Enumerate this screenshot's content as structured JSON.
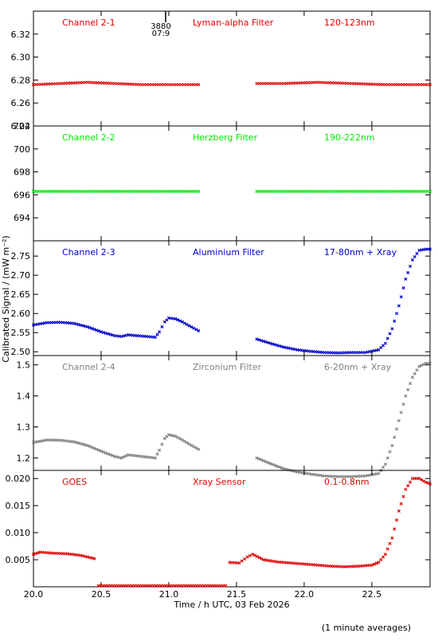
{
  "figure": {
    "ylabel": "Calibrated Signal / (mW m⁻²)",
    "xlabel": "Time / h UTC, 03 Feb 2026",
    "footnote": "(1 minute averages)",
    "marker_top": "3880",
    "marker_bottom": "07:9"
  },
  "colors": {
    "red": "#e00000",
    "green": "#00ee00",
    "blue": "#0000cc",
    "gray": "#808080",
    "axis": "#000000"
  },
  "chart_data": [
    {
      "type": "scatter",
      "labels": [
        "Channel 2-1",
        "Lyman-alpha Filter",
        "120-123nm"
      ],
      "color_key": "red",
      "ylim": [
        6.24,
        6.34
      ],
      "yticks": [
        "6.24",
        "6.26",
        "6.28",
        "6.30",
        "6.32"
      ],
      "ytick_values": [
        6.24,
        6.26,
        6.28,
        6.3,
        6.32
      ],
      "xlim": [
        20.0,
        22.93
      ],
      "series": [
        {
          "x": [
            20.0,
            20.2,
            20.4,
            20.6,
            20.8,
            21.0,
            21.15,
            21.22
          ],
          "y": [
            6.276,
            6.277,
            6.278,
            6.277,
            6.276,
            6.276,
            6.276,
            6.276
          ]
        },
        {
          "x": [
            21.65,
            21.85,
            22.1,
            22.35,
            22.6,
            22.8,
            22.93
          ],
          "y": [
            6.277,
            6.277,
            6.278,
            6.277,
            6.276,
            6.276,
            6.276
          ]
        }
      ]
    },
    {
      "type": "scatter",
      "labels": [
        "Channel 2-2",
        "Herzberg Filter",
        "190-222nm"
      ],
      "color_key": "green",
      "ylim": [
        692,
        702
      ],
      "yticks": [
        "694",
        "696",
        "698",
        "700",
        "702"
      ],
      "ytick_values": [
        694,
        696,
        698,
        700,
        702
      ],
      "xlim": [
        20.0,
        22.93
      ],
      "series": [
        {
          "x": [
            20.0,
            20.4,
            20.8,
            21.22
          ],
          "y": [
            696.3,
            696.3,
            696.3,
            696.3
          ]
        },
        {
          "x": [
            21.65,
            22.1,
            22.6,
            22.93
          ],
          "y": [
            696.3,
            696.3,
            696.3,
            696.3
          ]
        }
      ]
    },
    {
      "type": "scatter",
      "labels": [
        "Channel 2-3",
        "Aluminium Filter",
        "17-80nm + Xray"
      ],
      "color_key": "blue",
      "ylim": [
        2.49,
        2.79
      ],
      "yticks": [
        "2.50",
        "2.55",
        "2.60",
        "2.65",
        "2.70",
        "2.75"
      ],
      "ytick_values": [
        2.5,
        2.55,
        2.6,
        2.65,
        2.7,
        2.75
      ],
      "xlim": [
        20.0,
        22.93
      ],
      "series": [
        {
          "x": [
            20.0,
            20.1,
            20.2,
            20.3,
            20.4,
            20.5,
            20.6,
            20.65,
            20.7,
            20.8,
            20.9,
            20.93,
            20.97,
            21.0,
            21.05,
            21.1,
            21.15,
            21.22
          ],
          "y": [
            2.57,
            2.576,
            2.577,
            2.574,
            2.565,
            2.552,
            2.542,
            2.54,
            2.544,
            2.541,
            2.538,
            2.552,
            2.578,
            2.588,
            2.586,
            2.578,
            2.568,
            2.555
          ]
        },
        {
          "x": [
            21.65,
            21.75,
            21.85,
            21.95,
            22.05,
            22.15,
            22.25,
            22.35,
            22.45,
            22.55,
            22.6,
            22.65,
            22.7,
            22.75,
            22.8,
            22.85,
            22.9,
            22.93
          ],
          "y": [
            2.533,
            2.522,
            2.512,
            2.505,
            2.501,
            2.498,
            2.497,
            2.498,
            2.498,
            2.505,
            2.522,
            2.56,
            2.62,
            2.69,
            2.74,
            2.765,
            2.768,
            2.768
          ]
        }
      ]
    },
    {
      "type": "scatter",
      "labels": [
        "Channel 2-4",
        "Zirconium Filter",
        "6-20nm + Xray"
      ],
      "color_key": "gray",
      "ylim": [
        1.16,
        1.53
      ],
      "yticks": [
        "1.2",
        "1.3",
        "1.4",
        "1.5"
      ],
      "ytick_values": [
        1.2,
        1.3,
        1.4,
        1.5
      ],
      "xlim": [
        20.0,
        22.93
      ],
      "series": [
        {
          "x": [
            20.0,
            20.1,
            20.2,
            20.3,
            20.4,
            20.5,
            20.6,
            20.65,
            20.7,
            20.8,
            20.9,
            20.93,
            20.97,
            21.0,
            21.05,
            21.1,
            21.15,
            21.22
          ],
          "y": [
            1.25,
            1.258,
            1.257,
            1.252,
            1.24,
            1.222,
            1.205,
            1.2,
            1.21,
            1.205,
            1.2,
            1.225,
            1.263,
            1.275,
            1.27,
            1.258,
            1.245,
            1.228
          ]
        },
        {
          "x": [
            21.65,
            21.75,
            21.85,
            21.95,
            22.05,
            22.15,
            22.25,
            22.35,
            22.45,
            22.55,
            22.6,
            22.65,
            22.7,
            22.75,
            22.8,
            22.85,
            22.9,
            22.93
          ],
          "y": [
            1.2,
            1.182,
            1.165,
            1.155,
            1.148,
            1.142,
            1.14,
            1.14,
            1.142,
            1.15,
            1.18,
            1.24,
            1.32,
            1.4,
            1.46,
            1.495,
            1.505,
            1.505
          ]
        }
      ]
    },
    {
      "type": "scatter",
      "labels": [
        "GOES",
        "Xray Sensor",
        "0.1-0.8nm"
      ],
      "color_key": "red",
      "ylim": [
        0.0,
        0.0215
      ],
      "yticks": [
        "0.005",
        "0.010",
        "0.015",
        "0.020"
      ],
      "ytick_values": [
        0.005,
        0.01,
        0.015,
        0.02
      ],
      "xlim": [
        20.0,
        22.93
      ],
      "series": [
        {
          "x": [
            20.0,
            20.05,
            20.15,
            20.25,
            20.35,
            20.45
          ],
          "y": [
            0.006,
            0.0064,
            0.0062,
            0.0061,
            0.0058,
            0.0052
          ]
        },
        {
          "x": [
            20.48,
            20.8,
            21.1,
            21.42
          ],
          "y": [
            0.0002,
            0.0002,
            0.0002,
            0.0002
          ]
        },
        {
          "x": [
            21.45,
            21.52,
            21.58,
            21.62,
            21.7,
            21.8,
            21.9,
            22.0,
            22.1,
            22.2,
            22.3,
            22.4,
            22.5,
            22.55,
            22.6,
            22.65,
            22.7,
            22.75,
            22.8,
            22.85,
            22.9,
            22.93
          ],
          "y": [
            0.0045,
            0.0044,
            0.0055,
            0.006,
            0.005,
            0.0046,
            0.0044,
            0.0042,
            0.004,
            0.0038,
            0.0037,
            0.0038,
            0.004,
            0.0045,
            0.006,
            0.009,
            0.014,
            0.018,
            0.02,
            0.02,
            0.0193,
            0.019
          ]
        }
      ]
    }
  ],
  "x_axis": {
    "ticks": [
      "20.0",
      "20.5",
      "21.0",
      "21.5",
      "22.0",
      "22.5"
    ],
    "tick_values": [
      20.0,
      20.5,
      21.0,
      21.5,
      22.0,
      22.5
    ]
  }
}
